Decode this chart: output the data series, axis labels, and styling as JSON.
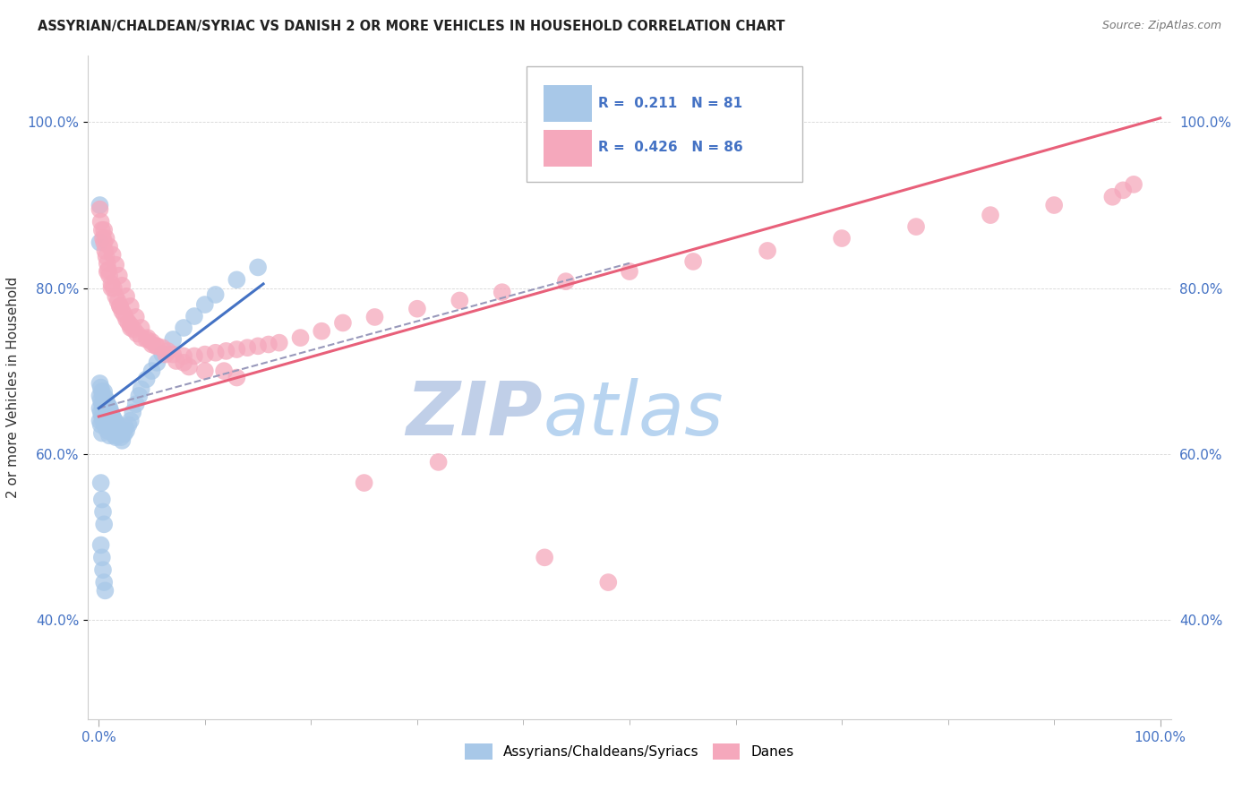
{
  "title": "ASSYRIAN/CHALDEAN/SYRIAC VS DANISH 2 OR MORE VEHICLES IN HOUSEHOLD CORRELATION CHART",
  "source": "Source: ZipAtlas.com",
  "ylabel": "2 or more Vehicles in Household",
  "legend_label1": "Assyrians/Chaldeans/Syriacs",
  "legend_label2": "Danes",
  "R1": 0.211,
  "N1": 81,
  "R2": 0.426,
  "N2": 86,
  "color_blue": "#a8c8e8",
  "color_pink": "#f5a8bc",
  "color_blue_line": "#4472c4",
  "color_pink_line": "#e8607a",
  "color_blue_text": "#4472c4",
  "color_dashed_line": "#9999bb",
  "ytick_vals": [
    0.4,
    0.6,
    0.8,
    1.0
  ],
  "ytick_labels": [
    "40.0%",
    "60.0%",
    "80.0%",
    "100.0%"
  ],
  "ylim_min": 0.28,
  "ylim_max": 1.08,
  "xlim_min": -0.01,
  "xlim_max": 1.01,
  "blue_line_x0": 0.0,
  "blue_line_y0": 0.655,
  "blue_line_x1": 0.155,
  "blue_line_y1": 0.805,
  "pink_line_x0": 0.0,
  "pink_line_y0": 0.645,
  "pink_line_x1": 1.0,
  "pink_line_y1": 1.005,
  "dash_line_x0": 0.0,
  "dash_line_y0": 0.655,
  "dash_line_x1": 0.5,
  "dash_line_y1": 0.83,
  "blue_x": [
    0.001,
    0.001,
    0.001,
    0.001,
    0.002,
    0.002,
    0.002,
    0.002,
    0.003,
    0.003,
    0.003,
    0.003,
    0.004,
    0.004,
    0.004,
    0.005,
    0.005,
    0.005,
    0.006,
    0.006,
    0.006,
    0.007,
    0.007,
    0.007,
    0.008,
    0.008,
    0.008,
    0.009,
    0.009,
    0.01,
    0.01,
    0.01,
    0.011,
    0.011,
    0.012,
    0.012,
    0.013,
    0.013,
    0.014,
    0.015,
    0.015,
    0.016,
    0.016,
    0.017,
    0.018,
    0.019,
    0.02,
    0.021,
    0.022,
    0.023,
    0.024,
    0.025,
    0.026,
    0.028,
    0.03,
    0.032,
    0.035,
    0.038,
    0.04,
    0.045,
    0.05,
    0.055,
    0.06,
    0.07,
    0.08,
    0.09,
    0.1,
    0.11,
    0.13,
    0.15,
    0.001,
    0.001,
    0.002,
    0.003,
    0.004,
    0.005,
    0.002,
    0.003,
    0.004,
    0.005,
    0.006
  ],
  "blue_y": [
    0.685,
    0.67,
    0.655,
    0.64,
    0.68,
    0.665,
    0.65,
    0.635,
    0.675,
    0.66,
    0.645,
    0.625,
    0.67,
    0.655,
    0.64,
    0.675,
    0.66,
    0.645,
    0.668,
    0.65,
    0.635,
    0.665,
    0.648,
    0.632,
    0.66,
    0.642,
    0.628,
    0.658,
    0.64,
    0.656,
    0.638,
    0.622,
    0.652,
    0.634,
    0.648,
    0.63,
    0.645,
    0.627,
    0.642,
    0.64,
    0.622,
    0.638,
    0.62,
    0.635,
    0.632,
    0.628,
    0.624,
    0.62,
    0.616,
    0.628,
    0.624,
    0.632,
    0.628,
    0.635,
    0.64,
    0.65,
    0.66,
    0.67,
    0.678,
    0.69,
    0.7,
    0.71,
    0.72,
    0.738,
    0.752,
    0.766,
    0.78,
    0.792,
    0.81,
    0.825,
    0.9,
    0.855,
    0.565,
    0.545,
    0.53,
    0.515,
    0.49,
    0.475,
    0.46,
    0.445,
    0.435
  ],
  "pink_x": [
    0.001,
    0.002,
    0.003,
    0.004,
    0.005,
    0.006,
    0.007,
    0.008,
    0.009,
    0.01,
    0.012,
    0.014,
    0.016,
    0.018,
    0.02,
    0.022,
    0.024,
    0.026,
    0.028,
    0.03,
    0.033,
    0.036,
    0.04,
    0.045,
    0.05,
    0.055,
    0.06,
    0.065,
    0.07,
    0.08,
    0.09,
    0.1,
    0.11,
    0.12,
    0.13,
    0.14,
    0.15,
    0.16,
    0.17,
    0.19,
    0.21,
    0.23,
    0.26,
    0.3,
    0.34,
    0.38,
    0.44,
    0.5,
    0.56,
    0.63,
    0.7,
    0.77,
    0.84,
    0.9,
    0.955,
    0.965,
    0.975,
    0.005,
    0.007,
    0.01,
    0.013,
    0.016,
    0.019,
    0.022,
    0.026,
    0.03,
    0.035,
    0.04,
    0.046,
    0.054,
    0.063,
    0.073,
    0.085,
    0.1,
    0.118,
    0.008,
    0.012,
    0.02,
    0.03,
    0.05,
    0.08,
    0.13,
    0.25,
    0.42,
    0.32,
    0.48
  ],
  "pink_y": [
    0.895,
    0.88,
    0.87,
    0.86,
    0.855,
    0.845,
    0.838,
    0.83,
    0.822,
    0.815,
    0.805,
    0.8,
    0.79,
    0.784,
    0.778,
    0.772,
    0.768,
    0.762,
    0.758,
    0.752,
    0.75,
    0.745,
    0.74,
    0.738,
    0.735,
    0.73,
    0.728,
    0.724,
    0.72,
    0.718,
    0.718,
    0.72,
    0.722,
    0.724,
    0.726,
    0.728,
    0.73,
    0.732,
    0.734,
    0.74,
    0.748,
    0.758,
    0.765,
    0.775,
    0.785,
    0.795,
    0.808,
    0.82,
    0.832,
    0.845,
    0.86,
    0.874,
    0.888,
    0.9,
    0.91,
    0.918,
    0.925,
    0.87,
    0.86,
    0.85,
    0.84,
    0.828,
    0.815,
    0.803,
    0.79,
    0.778,
    0.765,
    0.752,
    0.74,
    0.73,
    0.72,
    0.712,
    0.705,
    0.7,
    0.7,
    0.82,
    0.8,
    0.778,
    0.755,
    0.732,
    0.71,
    0.692,
    0.565,
    0.475,
    0.59,
    0.445
  ]
}
